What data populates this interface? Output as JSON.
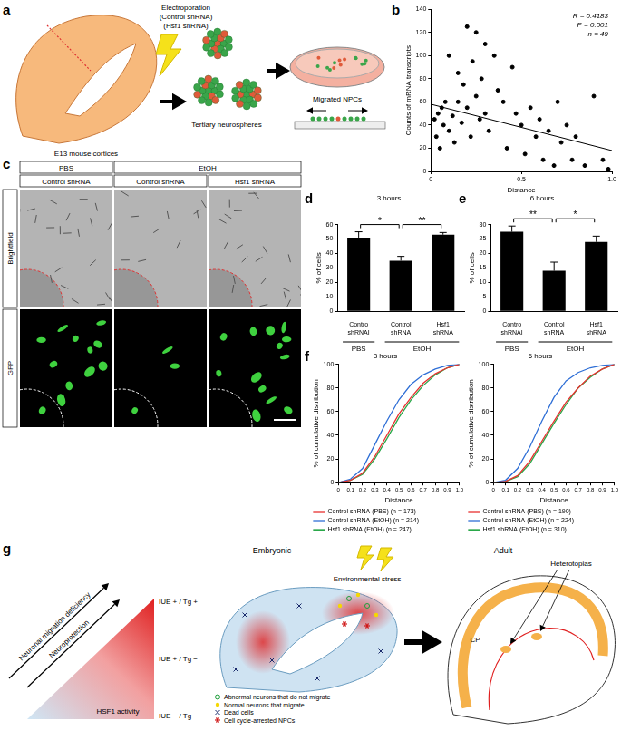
{
  "panel_letters": [
    "a",
    "b",
    "c",
    "d",
    "e",
    "f",
    "g"
  ],
  "panel_a": {
    "electroporation": [
      "Electroporation",
      "(Control shRNA)",
      "(Hsf1 shRNA)"
    ],
    "source": "E13 mouse cortices",
    "spheres": "Tertiary neurospheres",
    "result": "Migrated NPCs"
  },
  "panel_c": {
    "treatments": [
      {
        "label": "PBS",
        "span": 1
      },
      {
        "label": "EtOH",
        "span": 2
      }
    ],
    "columns": [
      "Control shRNA",
      "Control shRNA",
      "Hsf1 shRNA"
    ],
    "rows": [
      "Brightfield",
      "GFP"
    ]
  },
  "panel_g": {
    "arrows": [
      "Neuronal migration deficiency",
      "Neuroprotection"
    ],
    "gradient_label": "HSF1 activity",
    "levels": [
      "IUE + / Tg +",
      "IUE + / Tg −",
      "IUE − / Tg −"
    ],
    "stage_1": "Embryonic",
    "stress": "Environmental stress",
    "stage_2": "Adult",
    "heterotopias": "Heterotopias",
    "cp": "CP",
    "legend": [
      {
        "label": "Abnormal neurons that do not migrate",
        "marker": "open_circle"
      },
      {
        "label": "Normal neurons that migrate",
        "marker": "dot"
      },
      {
        "label": "Dead cells",
        "marker": "cross"
      },
      {
        "label": "Cell cycle-arrested NPCs",
        "marker": "star"
      }
    ]
  },
  "chart_data": [
    {
      "type": "scatter",
      "x_label": "Distance",
      "y_label": "Counts of mRNA transcripts",
      "annotations": [
        "R = 0.4183",
        "P = 0.001",
        "n = 49"
      ],
      "x": [
        0.02,
        0.03,
        0.04,
        0.05,
        0.06,
        0.07,
        0.08,
        0.1,
        0.1,
        0.12,
        0.13,
        0.15,
        0.15,
        0.17,
        0.18,
        0.2,
        0.2,
        0.22,
        0.23,
        0.25,
        0.25,
        0.27,
        0.28,
        0.3,
        0.3,
        0.32,
        0.35,
        0.37,
        0.4,
        0.42,
        0.45,
        0.47,
        0.5,
        0.52,
        0.55,
        0.58,
        0.6,
        0.62,
        0.65,
        0.68,
        0.7,
        0.72,
        0.75,
        0.78,
        0.8,
        0.85,
        0.9,
        0.95,
        0.98
      ],
      "values": [
        45,
        30,
        50,
        20,
        55,
        40,
        60,
        100,
        35,
        48,
        25,
        85,
        60,
        42,
        75,
        125,
        55,
        30,
        95,
        120,
        65,
        45,
        80,
        110,
        50,
        35,
        100,
        70,
        60,
        20,
        90,
        50,
        40,
        15,
        55,
        30,
        45,
        10,
        35,
        5,
        60,
        25,
        40,
        10,
        30,
        5,
        65,
        10,
        2
      ],
      "trend_line": {
        "x": [
          0,
          1
        ],
        "values": [
          58,
          18
        ]
      },
      "color": "#000000",
      "xlim": [
        0,
        1
      ],
      "xticks": [
        0,
        0.5,
        {
          "value": 1,
          "label": "1.0"
        }
      ],
      "ylim": [
        0,
        140
      ],
      "yticks": [
        0,
        20,
        40,
        60,
        80,
        100,
        120,
        140
      ],
      "grid": false
    },
    {
      "type": "bar",
      "title": "3 hours",
      "y_label": "% of cells",
      "categories": [
        "Contro shRNAI",
        "Control shRNA",
        "Hsf1 shRNA"
      ],
      "groups": [
        {
          "label": "PBS",
          "from": 0,
          "to": 0
        },
        {
          "label": "EtOH",
          "from": 1,
          "to": 2
        }
      ],
      "values": [
        51,
        35,
        53
      ],
      "errors": [
        4,
        3,
        1.5
      ],
      "color": "#000000",
      "significance": [
        {
          "from": 0,
          "to": 1,
          "label": "*"
        },
        {
          "from": 1,
          "to": 2,
          "label": "**"
        }
      ],
      "ylim": [
        0,
        60
      ],
      "yticks": [
        0,
        10,
        20,
        30,
        40,
        50,
        60
      ],
      "grid": false
    },
    {
      "type": "bar",
      "title": "6 hours",
      "y_label": "% of cells",
      "categories": [
        "Contro shRNAI",
        "Control shRNA",
        "Hsf1 shRNA"
      ],
      "groups": [
        {
          "label": "PBS",
          "from": 0,
          "to": 0
        },
        {
          "label": "EtOH",
          "from": 1,
          "to": 2
        }
      ],
      "values": [
        27.5,
        14,
        24
      ],
      "errors": [
        2,
        3,
        2
      ],
      "color": "#000000",
      "significance": [
        {
          "from": 0,
          "to": 1,
          "label": "**"
        },
        {
          "from": 1,
          "to": 2,
          "label": "*"
        }
      ],
      "ylim": [
        0,
        30
      ],
      "yticks": [
        0,
        5,
        10,
        15,
        20,
        25,
        30
      ],
      "grid": false
    },
    {
      "type": "line",
      "title": "3 hours",
      "x_label": "Distance",
      "y_label": "% of cumulative distribution",
      "x": [
        0,
        0.1,
        0.2,
        0.3,
        0.4,
        0.5,
        0.6,
        0.7,
        0.8,
        0.9,
        1
      ],
      "series": [
        {
          "name": "Control shRNA (PBS) (n = 173)",
          "color": "#e8312f",
          "values": [
            0,
            2,
            8,
            22,
            40,
            58,
            72,
            84,
            92,
            97,
            100
          ]
        },
        {
          "name": "Control shRNA (EtOH) (n = 214)",
          "color": "#2f6fd6",
          "values": [
            0,
            3,
            12,
            32,
            52,
            70,
            83,
            91,
            96,
            99,
            100
          ]
        },
        {
          "name": "Hsf1 shRNA (EtOH) (n = 247)",
          "color": "#2aa84a",
          "values": [
            0,
            2,
            7,
            20,
            37,
            55,
            70,
            82,
            91,
            97,
            100
          ]
        }
      ],
      "xlim": [
        0,
        1
      ],
      "xticks": [
        0,
        0.1,
        0.2,
        0.3,
        0.4,
        0.5,
        0.6,
        0.7,
        0.8,
        0.9,
        {
          "value": 1,
          "label": "1.0"
        }
      ],
      "ylim": [
        0,
        100
      ],
      "yticks": [
        0,
        20,
        40,
        60,
        80,
        100
      ],
      "legend": "bottom",
      "grid": false
    },
    {
      "type": "line",
      "title": "6 hours",
      "x_label": "Distance",
      "y_label": "% of cumulative distribution",
      "x": [
        0,
        0.1,
        0.2,
        0.3,
        0.4,
        0.5,
        0.6,
        0.7,
        0.8,
        0.9,
        1
      ],
      "series": [
        {
          "name": "Control shRNA (PBS) (n = 190)",
          "color": "#e8312f",
          "values": [
            0,
            1,
            6,
            18,
            35,
            52,
            68,
            80,
            90,
            96,
            100
          ]
        },
        {
          "name": "Control shRNA (EtOH) (n = 224)",
          "color": "#2f6fd6",
          "values": [
            0,
            2,
            12,
            30,
            52,
            72,
            86,
            93,
            97,
            99,
            100
          ]
        },
        {
          "name": "Hsf1 shRNA (EtOH) (n = 310)",
          "color": "#2aa84a",
          "values": [
            0,
            1,
            5,
            16,
            33,
            50,
            66,
            80,
            89,
            96,
            100
          ]
        }
      ],
      "xlim": [
        0,
        1
      ],
      "xticks": [
        0,
        0.1,
        0.2,
        0.3,
        0.4,
        0.5,
        0.6,
        0.7,
        0.8,
        0.9,
        {
          "value": 1,
          "label": "1.0"
        }
      ],
      "ylim": [
        0,
        100
      ],
      "yticks": [
        0,
        20,
        40,
        60,
        80,
        100
      ],
      "legend": "bottom",
      "grid": false
    }
  ]
}
